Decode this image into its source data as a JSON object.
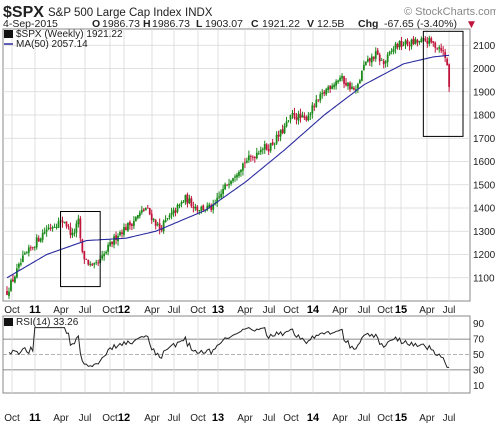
{
  "header": {
    "symbol": "$SPX",
    "name": "S&P 500 Large Cap Index",
    "exchange": "INDX",
    "watermark": "© StockCharts.com",
    "date": "4-Sep-2015",
    "open_label": "O",
    "open": "1986.73",
    "high_label": "H",
    "high": "1986.73",
    "low_label": "L",
    "low": "1903.07",
    "close_label": "C",
    "close": "1921.22",
    "volume_label": "V",
    "volume": "12.5B",
    "change_label": "Chg",
    "change": "-67.65 (-3.40%)",
    "change_arrow": "▼"
  },
  "legend": {
    "price": "$SPX (Weekly) 1921.22",
    "ma": "MA(50) 2057.14",
    "rsi": "RSI(14) 33.26"
  },
  "colors": {
    "up": "#1a8a1a",
    "down": "#c0143c",
    "ma": "#2a2aa0",
    "rsi": "#222222",
    "grid": "#d8d8d8",
    "box": "#000000"
  },
  "chart_data": [
    {
      "type": "candlestick",
      "title": "$SPX S&P 500 Large Cap Index INDX",
      "interval": "weekly",
      "ylim": [
        1000,
        2170
      ],
      "y_ticks": [
        1100,
        1200,
        1300,
        1400,
        1500,
        1600,
        1700,
        1800,
        1900,
        2000,
        2100
      ],
      "x_ticks": [
        "Oct",
        "11",
        "Apr",
        "Jul",
        "Oct",
        "12",
        "Apr",
        "Jul",
        "Oct",
        "13",
        "Apr",
        "Jul",
        "Oct",
        "14",
        "Apr",
        "Jul",
        "Oct",
        "15",
        "Apr",
        "Jul"
      ],
      "x_tick_bold": [
        false,
        true,
        false,
        false,
        false,
        true,
        false,
        false,
        false,
        true,
        false,
        false,
        false,
        true,
        false,
        false,
        false,
        true,
        false,
        false
      ],
      "anchors": [
        {
          "t": 0,
          "v": 1040
        },
        {
          "t": 8,
          "v": 1180
        },
        {
          "t": 16,
          "v": 1270
        },
        {
          "t": 20,
          "v": 1310
        },
        {
          "t": 25,
          "v": 1335
        },
        {
          "t": 29,
          "v": 1345
        },
        {
          "t": 33,
          "v": 1280
        },
        {
          "t": 36,
          "v": 1340
        },
        {
          "t": 38,
          "v": 1200
        },
        {
          "t": 43,
          "v": 1140
        },
        {
          "t": 47,
          "v": 1170
        },
        {
          "t": 52,
          "v": 1240
        },
        {
          "t": 56,
          "v": 1290
        },
        {
          "t": 62,
          "v": 1330
        },
        {
          "t": 70,
          "v": 1400
        },
        {
          "t": 77,
          "v": 1310
        },
        {
          "t": 82,
          "v": 1360
        },
        {
          "t": 90,
          "v": 1440
        },
        {
          "t": 96,
          "v": 1400
        },
        {
          "t": 104,
          "v": 1400
        },
        {
          "t": 112,
          "v": 1520
        },
        {
          "t": 120,
          "v": 1600
        },
        {
          "t": 124,
          "v": 1620
        },
        {
          "t": 128,
          "v": 1660
        },
        {
          "t": 132,
          "v": 1660
        },
        {
          "t": 138,
          "v": 1720
        },
        {
          "t": 144,
          "v": 1800
        },
        {
          "t": 150,
          "v": 1780
        },
        {
          "t": 156,
          "v": 1850
        },
        {
          "t": 162,
          "v": 1920
        },
        {
          "t": 168,
          "v": 1960
        },
        {
          "t": 172,
          "v": 1930
        },
        {
          "t": 176,
          "v": 1900
        },
        {
          "t": 180,
          "v": 2010
        },
        {
          "t": 186,
          "v": 2060
        },
        {
          "t": 190,
          "v": 2020
        },
        {
          "t": 196,
          "v": 2100
        },
        {
          "t": 204,
          "v": 2110
        },
        {
          "t": 212,
          "v": 2120
        },
        {
          "t": 216,
          "v": 2100
        },
        {
          "t": 219,
          "v": 2090
        },
        {
          "t": 222,
          "v": 2020
        },
        {
          "t": 223,
          "v": 1921
        }
      ],
      "ma_anchors": [
        {
          "t": 0,
          "v": 1100
        },
        {
          "t": 20,
          "v": 1200
        },
        {
          "t": 40,
          "v": 1260
        },
        {
          "t": 60,
          "v": 1270
        },
        {
          "t": 75,
          "v": 1300
        },
        {
          "t": 100,
          "v": 1390
        },
        {
          "t": 120,
          "v": 1510
        },
        {
          "t": 140,
          "v": 1650
        },
        {
          "t": 160,
          "v": 1800
        },
        {
          "t": 180,
          "v": 1930
        },
        {
          "t": 200,
          "v": 2020
        },
        {
          "t": 215,
          "v": 2050
        },
        {
          "t": 223,
          "v": 2057
        }
      ],
      "annotation_boxes": [
        {
          "t0": 27,
          "t1": 47,
          "v0": 1062,
          "v1": 1385
        },
        {
          "t0": 210,
          "t1": 230,
          "v0": 1708,
          "v1": 2160
        }
      ]
    },
    {
      "type": "line",
      "title": "RSI(14) 33.26",
      "ylim": [
        0,
        100
      ],
      "y_ticks": [
        10,
        30,
        50,
        70,
        90
      ],
      "reference_lines": [
        30,
        50,
        70
      ],
      "last_value": 33.26
    }
  ]
}
